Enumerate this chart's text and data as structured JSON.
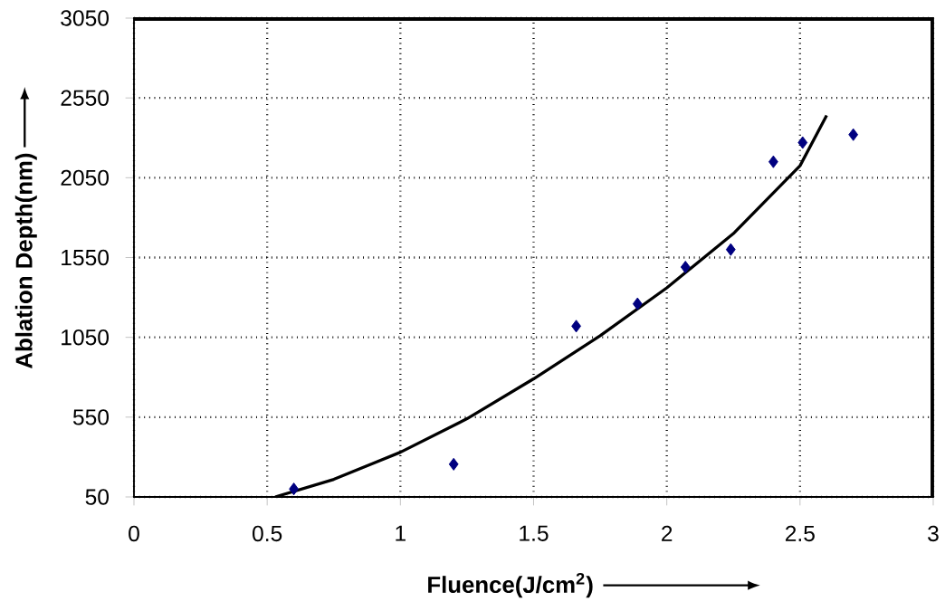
{
  "chart_data": {
    "type": "scatter",
    "xlabel": "Fluence(J/cm$^{2}$)",
    "ylabel": "Ablation Depth(nm)",
    "xlim": [
      0,
      3
    ],
    "xticks": [
      0,
      0.5,
      1,
      1.5,
      2,
      2.5,
      3
    ],
    "ylim": [
      50,
      3050
    ],
    "yticks": [
      50,
      550,
      1050,
      1550,
      2050,
      2550,
      3050
    ],
    "grid": true,
    "marker": "diamond",
    "series": [
      {
        "color": "#000080",
        "x": [
          0.6,
          1.2,
          1.66,
          1.89,
          2.07,
          2.24,
          2.4,
          2.51,
          2.7
        ],
        "values": [
          100,
          255,
          1120,
          1260,
          1490,
          1600,
          2150,
          2270,
          2320
        ]
      },
      {
        "type": "line",
        "color": "#000000",
        "marker": "none",
        "line_style": "solid",
        "x": [
          0.53,
          0.75,
          1,
          1.25,
          1.5,
          1.75,
          2,
          2.25,
          2.5,
          2.6
        ],
        "values": [
          50,
          160,
          330,
          540,
          790,
          1060,
          1360,
          1700,
          2125,
          2440
        ]
      }
    ]
  }
}
